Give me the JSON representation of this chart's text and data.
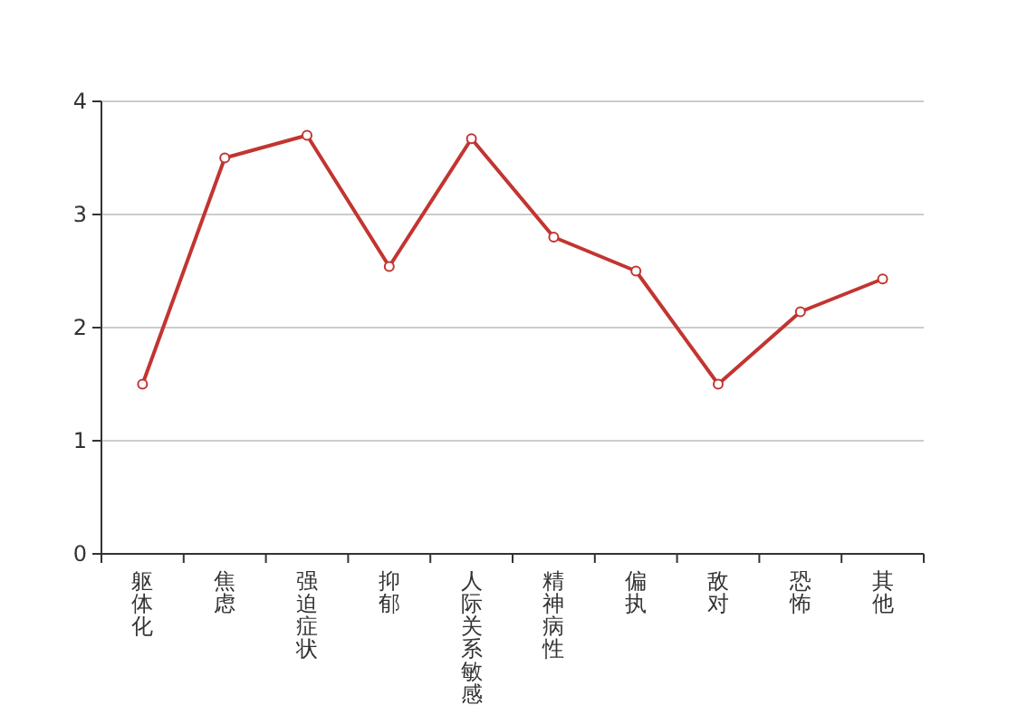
{
  "chart_data": {
    "type": "line",
    "categories": [
      "躯体化",
      "焦虑",
      "强迫症状",
      "抑郁",
      "人际关系敏感",
      "精神病性",
      "偏执",
      "敌对",
      "恐怖",
      "其他"
    ],
    "series": [
      {
        "color": "#c23531",
        "values": [
          1.5,
          3.5,
          3.7,
          2.54,
          3.67,
          2.8,
          2.5,
          1.5,
          2.14,
          2.43
        ]
      }
    ],
    "ylim": [
      0,
      4
    ],
    "yticks": [
      0,
      1,
      2,
      3,
      4
    ],
    "grid": "y",
    "marker": "circle",
    "line_style": "solid"
  }
}
